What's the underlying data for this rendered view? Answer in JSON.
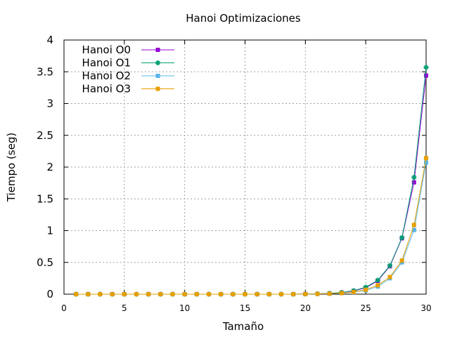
{
  "chart_data": {
    "type": "line",
    "title": "Hanoi Optimizaciones",
    "xlabel": "Tamaño",
    "ylabel": "Tiempo (seg)",
    "xlim": [
      0,
      30
    ],
    "ylim": [
      0,
      4
    ],
    "x_ticks": [
      "0",
      "5",
      "10",
      "15",
      "20",
      "25",
      "30"
    ],
    "y_ticks": [
      "0",
      "0.5",
      "1",
      "1.5",
      "2",
      "2.5",
      "3",
      "3.5",
      "4"
    ],
    "grid": true,
    "legend_position": "top-left",
    "x": [
      1,
      2,
      3,
      4,
      5,
      6,
      7,
      8,
      9,
      10,
      11,
      12,
      13,
      14,
      15,
      16,
      17,
      18,
      19,
      20,
      21,
      22,
      23,
      24,
      25,
      26,
      27,
      28,
      29,
      30
    ],
    "series": [
      {
        "name": "Hanoi O0",
        "color": "#9400d3",
        "marker": "square",
        "values": [
          0,
          0,
          0,
          0,
          0,
          0,
          0,
          0,
          0,
          0,
          0,
          0,
          0,
          0,
          0,
          0,
          0,
          0,
          0,
          0.003,
          0.006,
          0.012,
          0.025,
          0.05,
          0.1,
          0.21,
          0.44,
          0.88,
          1.76,
          3.44
        ]
      },
      {
        "name": "Hanoi O1",
        "color": "#009e73",
        "marker": "star",
        "values": [
          0,
          0,
          0,
          0,
          0,
          0,
          0,
          0,
          0,
          0,
          0,
          0,
          0,
          0,
          0,
          0,
          0,
          0,
          0,
          0.003,
          0.006,
          0.013,
          0.027,
          0.055,
          0.11,
          0.22,
          0.45,
          0.89,
          1.84,
          3.57
        ]
      },
      {
        "name": "Hanoi O2",
        "color": "#56b4e9",
        "marker": "square",
        "values": [
          0,
          0,
          0,
          0,
          0,
          0,
          0,
          0,
          0,
          0,
          0,
          0,
          0,
          0,
          0,
          0,
          0,
          0,
          0,
          0.002,
          0.004,
          0.008,
          0.016,
          0.032,
          0.06,
          0.12,
          0.25,
          0.5,
          1.01,
          2.07
        ]
      },
      {
        "name": "Hanoi O3",
        "color": "#e69f00",
        "marker": "square",
        "values": [
          0,
          0,
          0,
          0,
          0,
          0,
          0,
          0,
          0,
          0,
          0,
          0,
          0,
          0,
          0,
          0,
          0,
          0,
          0,
          0.002,
          0.004,
          0.008,
          0.017,
          0.034,
          0.07,
          0.14,
          0.27,
          0.53,
          1.09,
          2.14
        ]
      }
    ]
  }
}
